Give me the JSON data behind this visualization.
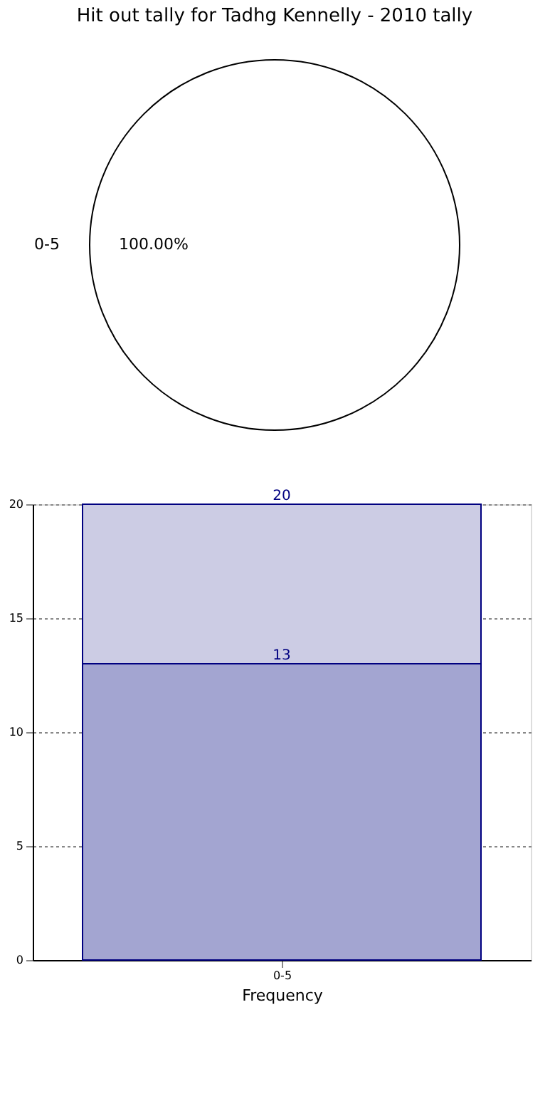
{
  "chart_data": [
    {
      "type": "pie",
      "title": "Hit out tally for Tadhg Kennelly - 2010 tally",
      "categories": [
        "0-5"
      ],
      "values": [
        100
      ],
      "colors": [
        "#ffffff"
      ],
      "value_labels": [
        "100.00%"
      ]
    },
    {
      "type": "bar",
      "categories": [
        "0-5"
      ],
      "xlabel": "Frequency",
      "ylim": [
        0,
        20
      ],
      "yticks": [
        0,
        5,
        10,
        15,
        20
      ],
      "grid": true,
      "stacked": true,
      "totals": [
        "20"
      ],
      "series": [
        {
          "color": "#a3a5d1",
          "values": [
            13
          ],
          "value_labels": [
            "13"
          ]
        },
        {
          "color": "#ccccE4",
          "values": [
            7
          ]
        }
      ]
    }
  ]
}
